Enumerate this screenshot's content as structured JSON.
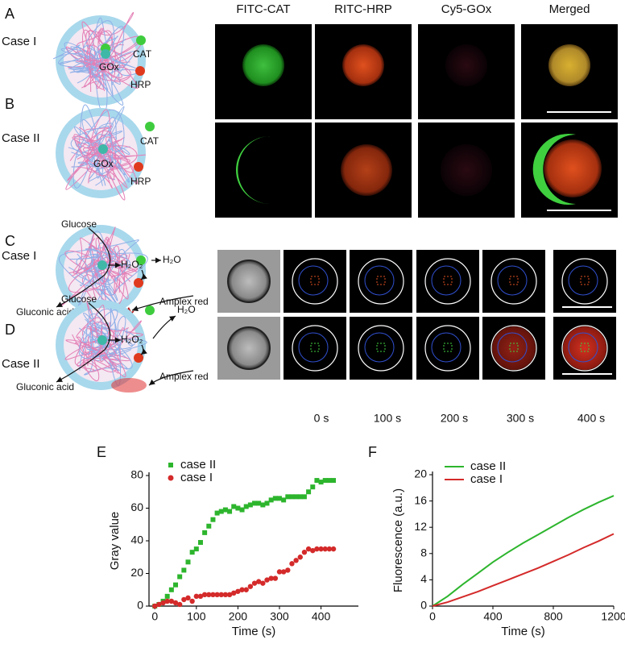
{
  "figure": {
    "panels": [
      "A",
      "B",
      "C",
      "D"
    ],
    "case_labels": [
      "Case I",
      "Case II",
      "Case I",
      "Case II"
    ],
    "columns": [
      "FITC-CAT",
      "RITC-HRP",
      "Cy5-GOx",
      "Merged"
    ],
    "enzymes": [
      "GOx",
      "CAT",
      "HRP"
    ],
    "reaction_labels": {
      "glucose": "Glucose",
      "h2o2": "H₂O₂",
      "h2o": "H₂O",
      "gluconic": "Gluconic acid",
      "amplex": "Amplex red"
    },
    "times": [
      "0 s",
      "100 s",
      "200 s",
      "300 s",
      "400 s"
    ]
  },
  "chart_data": [
    {
      "type": "scatter",
      "panel": "E",
      "xlabel": "Time (s)",
      "ylabel": "Gray value",
      "x": [
        0,
        10,
        20,
        30,
        40,
        50,
        60,
        70,
        80,
        90,
        100,
        110,
        120,
        130,
        140,
        150,
        160,
        170,
        180,
        190,
        200,
        210,
        220,
        230,
        240,
        250,
        260,
        270,
        280,
        290,
        300,
        310,
        320,
        330,
        340,
        350,
        360,
        370,
        380,
        390,
        400,
        410,
        420,
        430
      ],
      "series": [
        {
          "name": "case II",
          "color": "#2db52d",
          "marker": "square",
          "values": [
            0,
            1,
            3,
            6,
            10,
            13,
            18,
            22,
            27,
            33,
            35,
            39,
            45,
            49,
            53,
            57,
            58,
            59,
            58,
            61,
            60,
            59,
            61,
            62,
            63,
            63,
            62,
            63,
            65,
            66,
            66,
            65,
            67,
            67,
            67,
            67,
            67,
            70,
            73,
            77,
            76,
            77,
            77,
            77
          ]
        },
        {
          "name": "case I",
          "color": "#d42a2a",
          "marker": "circle",
          "values": [
            0,
            1,
            2,
            3,
            3,
            2,
            1,
            4,
            5,
            3,
            6,
            6,
            7,
            7,
            7,
            7,
            7,
            7,
            7,
            8,
            9,
            10,
            10,
            12,
            14,
            15,
            14,
            16,
            17,
            17,
            21,
            21,
            22,
            26,
            28,
            30,
            33,
            35,
            34,
            35,
            35,
            35,
            35,
            35
          ]
        }
      ],
      "xlim": [
        -14,
        490
      ],
      "xticks": [
        0,
        100,
        200,
        300,
        400
      ],
      "ylim": [
        0,
        80
      ],
      "yticks": [
        0,
        20,
        40,
        60,
        80
      ]
    },
    {
      "type": "line",
      "panel": "F",
      "xlabel": "Time (s)",
      "ylabel": "Fluorescence (a.u.)",
      "x": [
        0,
        100,
        200,
        300,
        400,
        500,
        600,
        700,
        800,
        900,
        1000,
        1100,
        1200
      ],
      "series": [
        {
          "name": "case II",
          "color": "#2db52d",
          "values": [
            0,
            1.5,
            3.3,
            5,
            6.7,
            8.2,
            9.6,
            10.9,
            12.2,
            13.5,
            14.7,
            15.8,
            16.8
          ]
        },
        {
          "name": "case I",
          "color": "#d42a2a",
          "values": [
            0,
            0.6,
            1.4,
            2.2,
            3.1,
            4,
            4.9,
            5.8,
            6.8,
            7.8,
            8.9,
            9.9,
            11
          ]
        }
      ],
      "xlim": [
        0,
        1200
      ],
      "xticks": [
        0,
        400,
        800,
        1200
      ],
      "ylim": [
        0,
        20
      ],
      "yticks": [
        0,
        4,
        8,
        12,
        16,
        20
      ]
    }
  ]
}
